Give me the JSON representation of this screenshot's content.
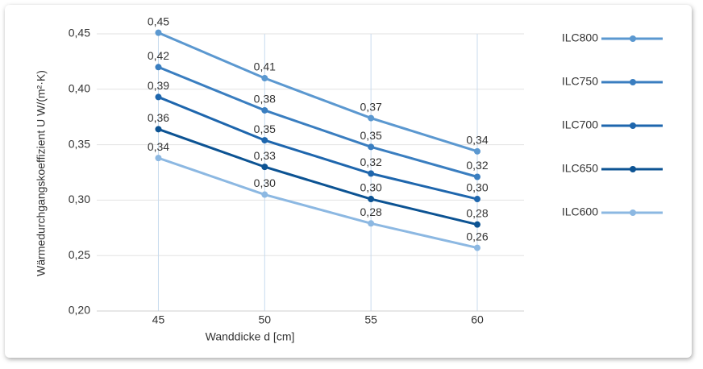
{
  "chart_data": {
    "type": "line",
    "x_label": "Wanddicke d [cm]",
    "y_label": "Wärmedurchgangskoeffizient U  W/(m²·K)",
    "x": [
      45,
      50,
      55,
      60
    ],
    "xlim": [
      42.1,
      62.2
    ],
    "xticks": [
      45,
      50,
      55,
      60
    ],
    "ylim": [
      0.2,
      0.45
    ],
    "yticks": [
      {
        "value": 0.2,
        "label": "0,20"
      },
      {
        "value": 0.25,
        "label": "0,25"
      },
      {
        "value": 0.3,
        "label": "0,30"
      },
      {
        "value": 0.35,
        "label": "0,35"
      },
      {
        "value": 0.4,
        "label": "0,40"
      },
      {
        "value": 0.45,
        "label": "0,45"
      }
    ],
    "grid": true,
    "legend": "right",
    "series": [
      {
        "name": "ILC800",
        "color": "#5b98d0",
        "values": [
          0.451,
          0.41,
          0.374,
          0.344
        ],
        "value_labels": [
          "0,45",
          "0,41",
          "0,37",
          "0,34"
        ]
      },
      {
        "name": "ILC750",
        "color": "#3a7ec0",
        "values": [
          0.42,
          0.381,
          0.348,
          0.321
        ],
        "value_labels": [
          "0,42",
          "0,38",
          "0,35",
          "0,32"
        ]
      },
      {
        "name": "ILC700",
        "color": "#1e66ad",
        "values": [
          0.393,
          0.354,
          0.324,
          0.301
        ],
        "value_labels": [
          "0,39",
          "0,35",
          "0,32",
          "0,30"
        ]
      },
      {
        "name": "ILC650",
        "color": "#0c5393",
        "values": [
          0.364,
          0.33,
          0.301,
          0.278
        ],
        "value_labels": [
          "0,36",
          "0,33",
          "0,30",
          "0,28"
        ]
      },
      {
        "name": "ILC600",
        "color": "#8cb8e2",
        "values": [
          0.338,
          0.305,
          0.279,
          0.257
        ],
        "value_labels": [
          "0,34",
          "0,30",
          "0,28",
          "0,26"
        ]
      }
    ]
  }
}
